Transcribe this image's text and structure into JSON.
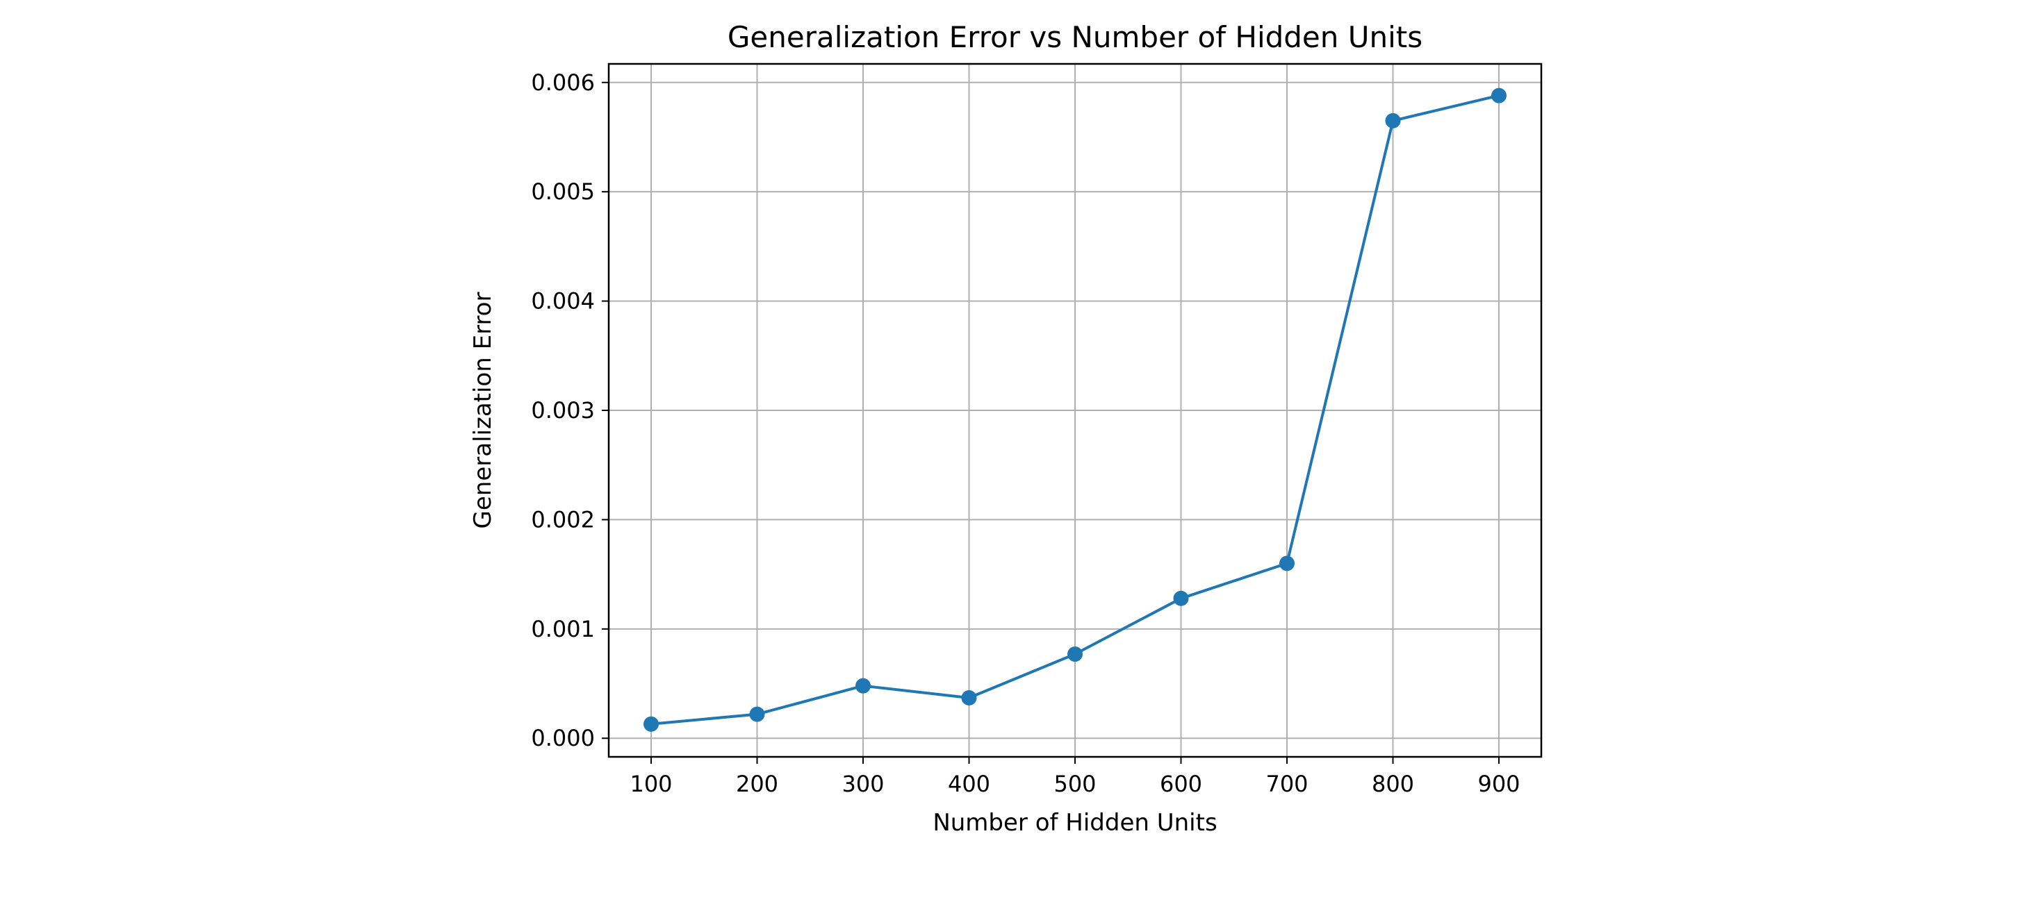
{
  "chart_data": {
    "type": "line",
    "title": "Generalization Error vs Number of Hidden Units",
    "xlabel": "Number of Hidden Units",
    "ylabel": "Generalization Error",
    "x": [
      100,
      200,
      300,
      400,
      500,
      600,
      700,
      800,
      900
    ],
    "x_tick_labels": [
      "100",
      "200",
      "300",
      "400",
      "500",
      "600",
      "700",
      "800",
      "900"
    ],
    "y_ticks": [
      0.0,
      0.001,
      0.002,
      0.003,
      0.004,
      0.005,
      0.006
    ],
    "y_tick_labels": [
      "0.000",
      "0.001",
      "0.002",
      "0.003",
      "0.004",
      "0.005",
      "0.006"
    ],
    "xlim": [
      60,
      940
    ],
    "ylim": [
      -0.00017,
      0.00617
    ],
    "grid": true,
    "series": [
      {
        "values": [
          0.00013,
          0.00022,
          0.00048,
          0.00037,
          0.00077,
          0.00128,
          0.0016,
          0.00565,
          0.00588
        ],
        "color": "#1f77b4",
        "marker": "circle"
      }
    ]
  }
}
